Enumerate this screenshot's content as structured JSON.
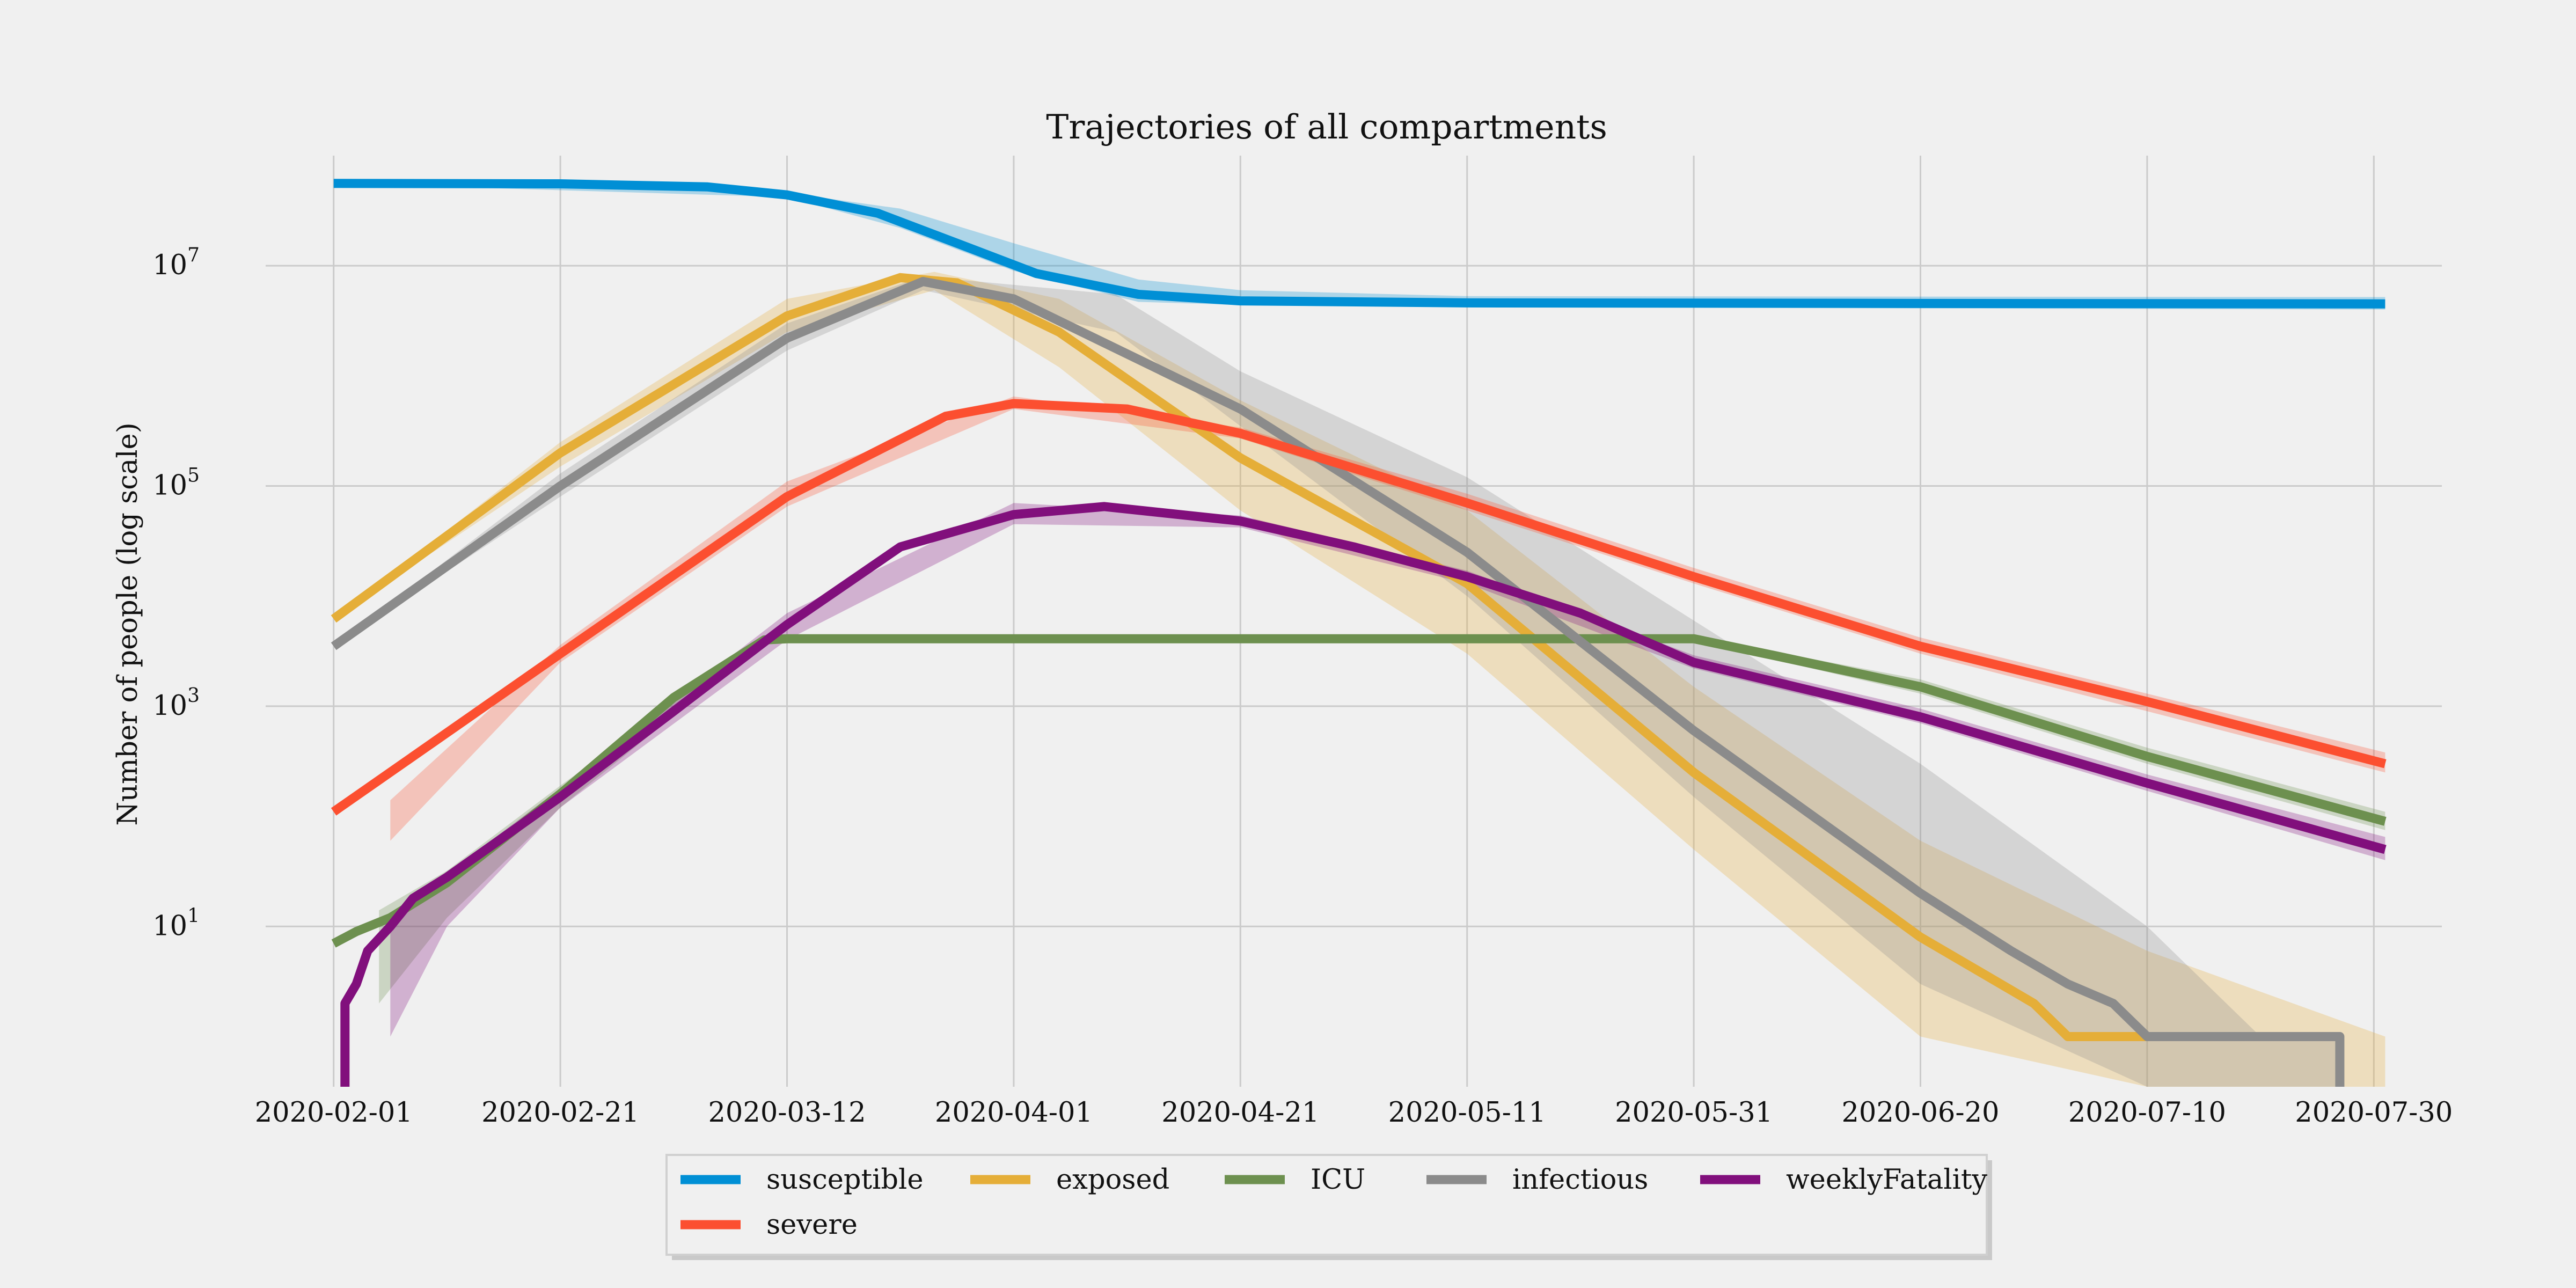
{
  "chart_data": {
    "type": "line",
    "title": "Trajectories of all compartments",
    "xlabel": "",
    "ylabel": "Number of people (log scale)",
    "y_scale": "log",
    "ylim": [
      0.35,
      100000000
    ],
    "xlim": [
      "2020-01-26",
      "2020-08-05"
    ],
    "x_ticks": [
      "2020-02-01",
      "2020-02-21",
      "2020-03-12",
      "2020-04-01",
      "2020-04-21",
      "2020-05-11",
      "2020-05-31",
      "2020-06-20",
      "2020-07-10",
      "2020-07-30"
    ],
    "y_ticks": [
      {
        "value": 10,
        "base": "10",
        "exp": "1"
      },
      {
        "value": 1000,
        "base": "10",
        "exp": "3"
      },
      {
        "value": 100000,
        "base": "10",
        "exp": "5"
      },
      {
        "value": 10000000,
        "base": "10",
        "exp": "7"
      }
    ],
    "grid": true,
    "legend_position": "bottom-center",
    "series": [
      {
        "name": "susceptible",
        "color": "#008fd5",
        "points": [
          [
            "2020-02-01",
            56000000
          ],
          [
            "2020-02-21",
            55500000
          ],
          [
            "2020-03-05",
            52000000
          ],
          [
            "2020-03-12",
            44000000
          ],
          [
            "2020-03-20",
            30000000
          ],
          [
            "2020-03-27",
            16000000
          ],
          [
            "2020-04-03",
            8500000
          ],
          [
            "2020-04-12",
            5500000
          ],
          [
            "2020-04-21",
            4800000
          ],
          [
            "2020-05-11",
            4600000
          ],
          [
            "2020-07-31",
            4500000
          ]
        ],
        "band": [
          [
            "2020-02-01",
            56000000,
            56000000
          ],
          [
            "2020-03-12",
            42000000,
            46000000
          ],
          [
            "2020-03-22",
            22000000,
            33000000
          ],
          [
            "2020-04-01",
            9000000,
            16000000
          ],
          [
            "2020-04-12",
            4700000,
            7500000
          ],
          [
            "2020-04-21",
            4400000,
            6000000
          ],
          [
            "2020-05-11",
            4200000,
            5300000
          ],
          [
            "2020-07-31",
            4000000,
            5200000
          ]
        ]
      },
      {
        "name": "exposed",
        "color": "#e5ae38",
        "points": [
          [
            "2020-02-01",
            6200
          ],
          [
            "2020-02-21",
            200000
          ],
          [
            "2020-03-12",
            3500000
          ],
          [
            "2020-03-22",
            7800000
          ],
          [
            "2020-03-27",
            7000000
          ],
          [
            "2020-04-05",
            2500000
          ],
          [
            "2020-04-21",
            180000
          ],
          [
            "2020-05-11",
            13000
          ],
          [
            "2020-05-31",
            250
          ],
          [
            "2020-06-20",
            8
          ],
          [
            "2020-06-25",
            4
          ],
          [
            "2020-06-30",
            2
          ],
          [
            "2020-07-03",
            1
          ],
          [
            "2020-07-13",
            1
          ],
          [
            "2020-07-26",
            1
          ]
        ],
        "band": [
          [
            "2020-02-01",
            6200,
            6200
          ],
          [
            "2020-02-21",
            150000,
            250000
          ],
          [
            "2020-03-12",
            2500000,
            5000000
          ],
          [
            "2020-03-25",
            6000000,
            8800000
          ],
          [
            "2020-04-05",
            1200000,
            5000000
          ],
          [
            "2020-04-21",
            60000,
            600000
          ],
          [
            "2020-05-11",
            3000,
            60000
          ],
          [
            "2020-05-31",
            50,
            1500
          ],
          [
            "2020-06-20",
            1,
            60
          ],
          [
            "2020-07-10",
            0.35,
            6
          ],
          [
            "2020-07-31",
            0.35,
            1
          ]
        ]
      },
      {
        "name": "ICU",
        "color": "#6d904f",
        "points": [
          [
            "2020-02-01",
            7
          ],
          [
            "2020-02-03",
            9
          ],
          [
            "2020-02-06",
            12
          ],
          [
            "2020-02-11",
            25
          ],
          [
            "2020-02-21",
            160
          ],
          [
            "2020-03-02",
            1200
          ],
          [
            "2020-03-10",
            4000
          ],
          [
            "2020-03-12",
            4100
          ],
          [
            "2020-05-31",
            4100
          ],
          [
            "2020-06-07",
            2900
          ],
          [
            "2020-06-20",
            1500
          ],
          [
            "2020-07-10",
            350
          ],
          [
            "2020-07-31",
            90
          ]
        ],
        "band": [
          [
            "2020-02-05",
            2,
            14
          ],
          [
            "2020-02-11",
            12,
            32
          ],
          [
            "2020-02-21",
            120,
            190
          ],
          [
            "2020-03-10",
            3800,
            4200
          ],
          [
            "2020-05-31",
            3900,
            4300
          ],
          [
            "2020-06-20",
            1300,
            1750
          ],
          [
            "2020-07-10",
            300,
            420
          ],
          [
            "2020-07-31",
            75,
            110
          ]
        ]
      },
      {
        "name": "infectious",
        "color": "#8b8b8b",
        "points": [
          [
            "2020-02-01",
            3500
          ],
          [
            "2020-02-21",
            100000
          ],
          [
            "2020-03-12",
            2200000
          ],
          [
            "2020-03-24",
            7200000
          ],
          [
            "2020-04-01",
            5000000
          ],
          [
            "2020-04-21",
            500000
          ],
          [
            "2020-05-11",
            25000
          ],
          [
            "2020-05-31",
            600
          ],
          [
            "2020-06-20",
            20
          ],
          [
            "2020-06-28",
            6
          ],
          [
            "2020-07-03",
            3
          ],
          [
            "2020-07-07",
            2
          ],
          [
            "2020-07-10",
            1
          ],
          [
            "2020-07-16",
            1
          ],
          [
            "2020-07-27",
            1
          ],
          [
            "2020-07-27",
            0.35
          ]
        ],
        "band": [
          [
            "2020-02-01",
            3500,
            3500
          ],
          [
            "2020-02-21",
            80000,
            130000
          ],
          [
            "2020-03-12",
            1700000,
            3000000
          ],
          [
            "2020-03-24",
            6000000,
            8000000
          ],
          [
            "2020-04-10",
            2500000,
            5500000
          ],
          [
            "2020-04-21",
            350000,
            1100000
          ],
          [
            "2020-05-11",
            10000,
            120000
          ],
          [
            "2020-05-31",
            150,
            6000
          ],
          [
            "2020-06-20",
            3,
            300
          ],
          [
            "2020-07-10",
            0.35,
            10
          ],
          [
            "2020-07-20",
            0.35,
            1
          ],
          [
            "2020-07-27",
            0.35,
            1
          ]
        ]
      },
      {
        "name": "severe",
        "color": "#fc4f30",
        "points": [
          [
            "2020-02-01",
            110
          ],
          [
            "2020-02-21",
            3000
          ],
          [
            "2020-03-12",
            80000
          ],
          [
            "2020-03-26",
            430000
          ],
          [
            "2020-04-01",
            560000
          ],
          [
            "2020-04-11",
            500000
          ],
          [
            "2020-04-21",
            300000
          ],
          [
            "2020-05-11",
            70000
          ],
          [
            "2020-05-31",
            15000
          ],
          [
            "2020-06-20",
            3500
          ],
          [
            "2020-07-10",
            1100
          ],
          [
            "2020-07-31",
            300
          ]
        ],
        "band": [
          [
            "2020-02-06",
            60,
            140
          ],
          [
            "2020-02-21",
            2500,
            3600
          ],
          [
            "2020-03-12",
            65000,
            110000
          ],
          [
            "2020-04-01",
            500000,
            650000
          ],
          [
            "2020-04-21",
            270000,
            340000
          ],
          [
            "2020-05-11",
            60000,
            85000
          ],
          [
            "2020-05-31",
            13000,
            18000
          ],
          [
            "2020-06-20",
            3000,
            4200
          ],
          [
            "2020-07-10",
            900,
            1300
          ],
          [
            "2020-07-31",
            250,
            380
          ]
        ]
      },
      {
        "name": "weeklyFatality",
        "color": "#810f7c",
        "points": [
          [
            "2020-02-02",
            0.35
          ],
          [
            "2020-02-02",
            2
          ],
          [
            "2020-02-03",
            3
          ],
          [
            "2020-02-04",
            6
          ],
          [
            "2020-02-06",
            10
          ],
          [
            "2020-02-08",
            18
          ],
          [
            "2020-02-11",
            28
          ],
          [
            "2020-02-21",
            150
          ],
          [
            "2020-03-02",
            900
          ],
          [
            "2020-03-12",
            5500
          ],
          [
            "2020-03-22",
            28000
          ],
          [
            "2020-04-01",
            55000
          ],
          [
            "2020-04-09",
            65000
          ],
          [
            "2020-04-21",
            48000
          ],
          [
            "2020-05-01",
            28000
          ],
          [
            "2020-05-11",
            15000
          ],
          [
            "2020-05-21",
            7000
          ],
          [
            "2020-05-31",
            2500
          ],
          [
            "2020-06-20",
            800
          ],
          [
            "2020-07-10",
            200
          ],
          [
            "2020-07-31",
            50
          ]
        ],
        "band": [
          [
            "2020-02-06",
            1,
            12
          ],
          [
            "2020-02-11",
            10,
            30
          ],
          [
            "2020-02-21",
            120,
            180
          ],
          [
            "2020-03-12",
            4000,
            7000
          ],
          [
            "2020-04-01",
            45000,
            70000
          ],
          [
            "2020-04-21",
            42000,
            54000
          ],
          [
            "2020-05-11",
            13000,
            17000
          ],
          [
            "2020-05-31",
            2200,
            2900
          ],
          [
            "2020-06-20",
            700,
            950
          ],
          [
            "2020-07-10",
            170,
            240
          ],
          [
            "2020-07-31",
            40,
            65
          ]
        ]
      }
    ],
    "legend_rows": [
      [
        "susceptible",
        "exposed",
        "ICU",
        "infectious",
        "weeklyFatality"
      ],
      [
        "severe"
      ]
    ]
  }
}
